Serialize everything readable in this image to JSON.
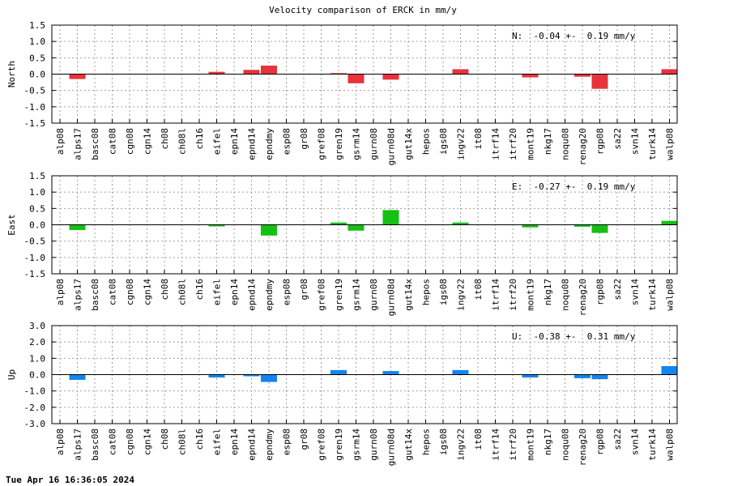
{
  "chart_data": {
    "title": "Velocity comparison of ERCK in mm/y",
    "type": "bar",
    "categories": [
      "alp08",
      "alps17",
      "basc08",
      "cat08",
      "cgn08",
      "cgn14",
      "ch08",
      "ch08l",
      "ch16",
      "eifel",
      "epn14",
      "epnd14",
      "epndmy",
      "esp08",
      "gr08",
      "gref08",
      "gren19",
      "gsrm14",
      "gurn08",
      "gurn08d",
      "gut14x",
      "hepos",
      "igs08",
      "ingv22",
      "it08",
      "itrf14",
      "itrf20",
      "mont19",
      "nkg17",
      "noqu08",
      "renag20",
      "rgp08",
      "sa22",
      "svn14",
      "turk14",
      "walp08"
    ],
    "panels": [
      {
        "ylabel": "North",
        "color": "#e8323c",
        "ylim": [
          -1.5,
          1.5
        ],
        "yticks": [
          "1.5",
          "1.0",
          "0.5",
          "0.0",
          "-0.5",
          "-1.0",
          "-1.5"
        ],
        "stat_text": "N:  -0.04 +-  0.19 mm/y",
        "values": [
          0,
          -0.15,
          0,
          0,
          0,
          0,
          0,
          0,
          0,
          0.07,
          0,
          0.13,
          0.26,
          0,
          0,
          0,
          0.03,
          -0.28,
          0,
          -0.17,
          0,
          0,
          0,
          0.15,
          0,
          0,
          0,
          -0.1,
          0,
          0,
          -0.08,
          -0.45,
          0,
          0,
          0,
          0.15
        ]
      },
      {
        "ylabel": "East",
        "color": "#14c014",
        "ylim": [
          -1.5,
          1.5
        ],
        "yticks": [
          "1.5",
          "1.0",
          "0.5",
          "0.0",
          "-0.5",
          "-1.0",
          "-1.5"
        ],
        "stat_text": "E:  -0.27 +-  0.19 mm/y",
        "values": [
          0,
          -0.16,
          0,
          0,
          0,
          0,
          0,
          0,
          0,
          -0.05,
          0,
          0,
          -0.33,
          0,
          0,
          0,
          0.07,
          -0.18,
          0,
          0.45,
          0,
          0,
          0,
          0.07,
          0,
          0,
          0,
          -0.08,
          0,
          0,
          -0.06,
          -0.25,
          0,
          0,
          0,
          0.12
        ]
      },
      {
        "ylabel": "Up",
        "color": "#1484f0",
        "ylim": [
          -3.0,
          3.0
        ],
        "yticks": [
          "3.0",
          "2.0",
          "1.0",
          "0.0",
          "-1.0",
          "-2.0",
          "-3.0"
        ],
        "stat_text": "U:  -0.38 +-  0.31 mm/y",
        "values": [
          0,
          -0.32,
          0,
          0,
          0,
          0,
          0,
          0,
          0,
          -0.18,
          0,
          -0.1,
          -0.45,
          0,
          0,
          0,
          0.28,
          0,
          0,
          0.22,
          0,
          0,
          0,
          0.28,
          0,
          0,
          0,
          -0.18,
          0,
          0,
          -0.22,
          -0.28,
          0,
          0,
          0,
          0.52
        ]
      }
    ],
    "grid": true
  },
  "footer": {
    "timestamp": "Tue Apr 16 16:36:05 2024"
  }
}
